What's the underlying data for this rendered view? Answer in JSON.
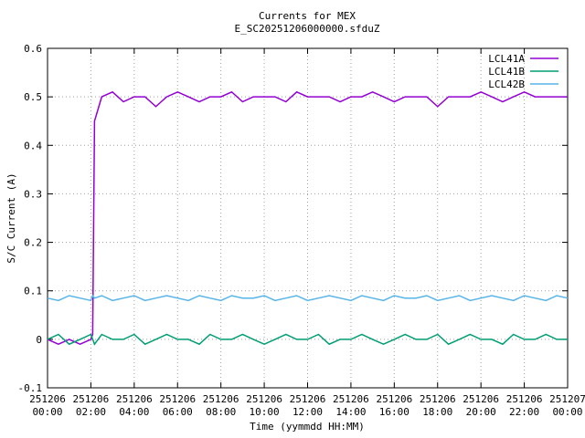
{
  "chart_data": {
    "type": "line",
    "title": "Currents for MEX",
    "subtitle": "E_SC20251206000000.sfduZ",
    "x_label": "Time (yymmdd HH:MM)",
    "y_label": "S/C Current (A)",
    "x": [
      "251206 00:00",
      "251206 00:30",
      "251206 01:00",
      "251206 01:30",
      "251206 02:00",
      "251206 02:05",
      "251206 02:10",
      "251206 02:30",
      "251206 03:00",
      "251206 03:30",
      "251206 04:00",
      "251206 04:30",
      "251206 05:00",
      "251206 05:30",
      "251206 06:00",
      "251206 06:30",
      "251206 07:00",
      "251206 07:30",
      "251206 08:00",
      "251206 08:30",
      "251206 09:00",
      "251206 09:30",
      "251206 10:00",
      "251206 10:30",
      "251206 11:00",
      "251206 11:30",
      "251206 12:00",
      "251206 12:30",
      "251206 13:00",
      "251206 13:30",
      "251206 14:00",
      "251206 14:30",
      "251206 15:00",
      "251206 15:30",
      "251206 16:00",
      "251206 16:30",
      "251206 17:00",
      "251206 17:30",
      "251206 18:00",
      "251206 18:30",
      "251206 19:00",
      "251206 19:30",
      "251206 20:00",
      "251206 20:30",
      "251206 21:00",
      "251206 21:30",
      "251206 22:00",
      "251206 22:30",
      "251206 23:00",
      "251206 23:30",
      "251207 00:00"
    ],
    "series": [
      {
        "name": "LCL41A",
        "color": "#9400d3",
        "values": [
          0,
          -0.01,
          0,
          -0.01,
          0,
          0.01,
          0.45,
          0.5,
          0.51,
          0.49,
          0.5,
          0.5,
          0.48,
          0.5,
          0.51,
          0.5,
          0.49,
          0.5,
          0.5,
          0.51,
          0.49,
          0.5,
          0.5,
          0.5,
          0.49,
          0.51,
          0.5,
          0.5,
          0.5,
          0.49,
          0.5,
          0.5,
          0.51,
          0.5,
          0.49,
          0.5,
          0.5,
          0.5,
          0.48,
          0.5,
          0.5,
          0.5,
          0.51,
          0.5,
          0.49,
          0.5,
          0.51,
          0.5,
          0.5,
          0.5,
          0.5
        ]
      },
      {
        "name": "LCL41B",
        "color": "#009e73",
        "values": [
          0,
          0.01,
          -0.01,
          0,
          0.01,
          0,
          -0.01,
          0.01,
          0,
          0,
          0.01,
          -0.01,
          0,
          0.01,
          0,
          0,
          -0.01,
          0.01,
          0,
          0,
          0.01,
          0,
          -0.01,
          0,
          0.01,
          0,
          0,
          0.01,
          -0.01,
          0,
          0,
          0.01,
          0,
          -0.01,
          0,
          0.01,
          0,
          0,
          0.01,
          -0.01,
          0,
          0.01,
          0,
          0,
          -0.01,
          0.01,
          0,
          0,
          0.01,
          0,
          0
        ]
      },
      {
        "name": "LCL42B",
        "color": "#56b4e9",
        "values": [
          0.085,
          0.08,
          0.09,
          0.085,
          0.08,
          0.09,
          0.085,
          0.09,
          0.08,
          0.085,
          0.09,
          0.08,
          0.085,
          0.09,
          0.085,
          0.08,
          0.09,
          0.085,
          0.08,
          0.09,
          0.085,
          0.085,
          0.09,
          0.08,
          0.085,
          0.09,
          0.08,
          0.085,
          0.09,
          0.085,
          0.08,
          0.09,
          0.085,
          0.08,
          0.09,
          0.085,
          0.085,
          0.09,
          0.08,
          0.085,
          0.09,
          0.08,
          0.085,
          0.09,
          0.085,
          0.08,
          0.09,
          0.085,
          0.08,
          0.09,
          0.085
        ]
      }
    ],
    "xlim": [
      "251206 00:00",
      "251207 00:00"
    ],
    "xticks": [
      "251206 00:00",
      "251206 02:00",
      "251206 04:00",
      "251206 06:00",
      "251206 08:00",
      "251206 10:00",
      "251206 12:00",
      "251206 14:00",
      "251206 16:00",
      "251206 18:00",
      "251206 20:00",
      "251206 22:00",
      "251207 00:00"
    ],
    "ylim": [
      -0.1,
      0.6
    ],
    "yticks": [
      -0.1,
      0,
      0.1,
      0.2,
      0.3,
      0.4,
      0.5,
      0.6
    ],
    "grid": true,
    "legend": "top-right"
  }
}
